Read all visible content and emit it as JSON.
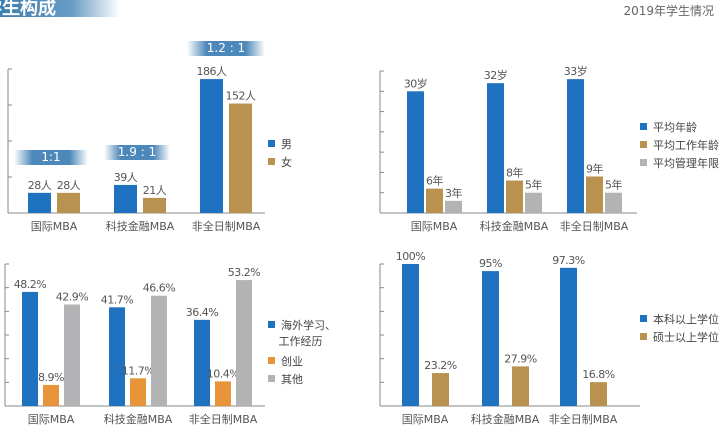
{
  "header": {
    "title": "学生构成",
    "subtitle": "2019年学生情况"
  },
  "colors": {
    "blue": "#1f72bf",
    "gold": "#b8924e",
    "gray": "#b3b3b5",
    "orange": "#e8943a"
  },
  "chart_data": [
    {
      "type": "bar",
      "categories": [
        "国际MBA",
        "科技金融MBA",
        "非全日制MBA"
      ],
      "ylim": [
        0,
        200
      ],
      "legend": "right",
      "series": [
        {
          "name": "男",
          "values": [
            28,
            39,
            186
          ],
          "labels": [
            "28人",
            "39人",
            "186人"
          ],
          "color": "#1f72bf"
        },
        {
          "name": "女",
          "values": [
            28,
            21,
            152
          ],
          "labels": [
            "28人",
            "21人",
            "152人"
          ],
          "color": "#b8924e"
        }
      ],
      "annotations": [
        "1:1",
        "1.9 : 1",
        "1.2 : 1"
      ]
    },
    {
      "type": "bar",
      "categories": [
        "国际MBA",
        "科技金融MBA",
        "非全日制MBA"
      ],
      "ylim": [
        0,
        35
      ],
      "legend": "right",
      "series": [
        {
          "name": "平均年龄",
          "values": [
            30,
            32,
            33
          ],
          "labels": [
            "30岁",
            "32岁",
            "33岁"
          ],
          "color": "#1f72bf"
        },
        {
          "name": "平均工作年龄",
          "values": [
            6,
            8,
            9
          ],
          "labels": [
            "6年",
            "8年",
            "9年"
          ],
          "color": "#b8924e"
        },
        {
          "name": "平均管理年限",
          "values": [
            3,
            5,
            5
          ],
          "labels": [
            "3年",
            "5年",
            "5年"
          ],
          "color": "#b3b3b5"
        }
      ]
    },
    {
      "type": "bar",
      "categories": [
        "国际MBA",
        "科技金融MBA",
        "非全日制MBA"
      ],
      "ylim": [
        0,
        60
      ],
      "legend": "right",
      "series": [
        {
          "name": "海外学习、\n工作经历",
          "values": [
            48.2,
            41.7,
            36.4
          ],
          "labels": [
            "48.2%",
            "41.7%",
            "36.4%"
          ],
          "color": "#1f72bf"
        },
        {
          "name": "创业",
          "values": [
            8.9,
            11.7,
            10.4
          ],
          "labels": [
            "8.9%",
            "11.7%",
            "10.4%"
          ],
          "color": "#e8943a"
        },
        {
          "name": "其他",
          "values": [
            42.9,
            46.6,
            53.2
          ],
          "labels": [
            "42.9%",
            "46.6%",
            "53.2%"
          ],
          "color": "#b3b3b5"
        }
      ]
    },
    {
      "type": "bar",
      "categories": [
        "国际MBA",
        "科技金融MBA",
        "非全日制MBA"
      ],
      "ylim": [
        0,
        100
      ],
      "legend": "right",
      "series": [
        {
          "name": "本科以上学位",
          "values": [
            100,
            95,
            97.3
          ],
          "labels": [
            "100%",
            "95%",
            "97.3%"
          ],
          "color": "#1f72bf"
        },
        {
          "name": "硕士以上学位",
          "values": [
            23.2,
            27.9,
            16.8
          ],
          "labels": [
            "23.2%",
            "27.9%",
            "16.8%"
          ],
          "color": "#b8924e"
        }
      ]
    }
  ]
}
